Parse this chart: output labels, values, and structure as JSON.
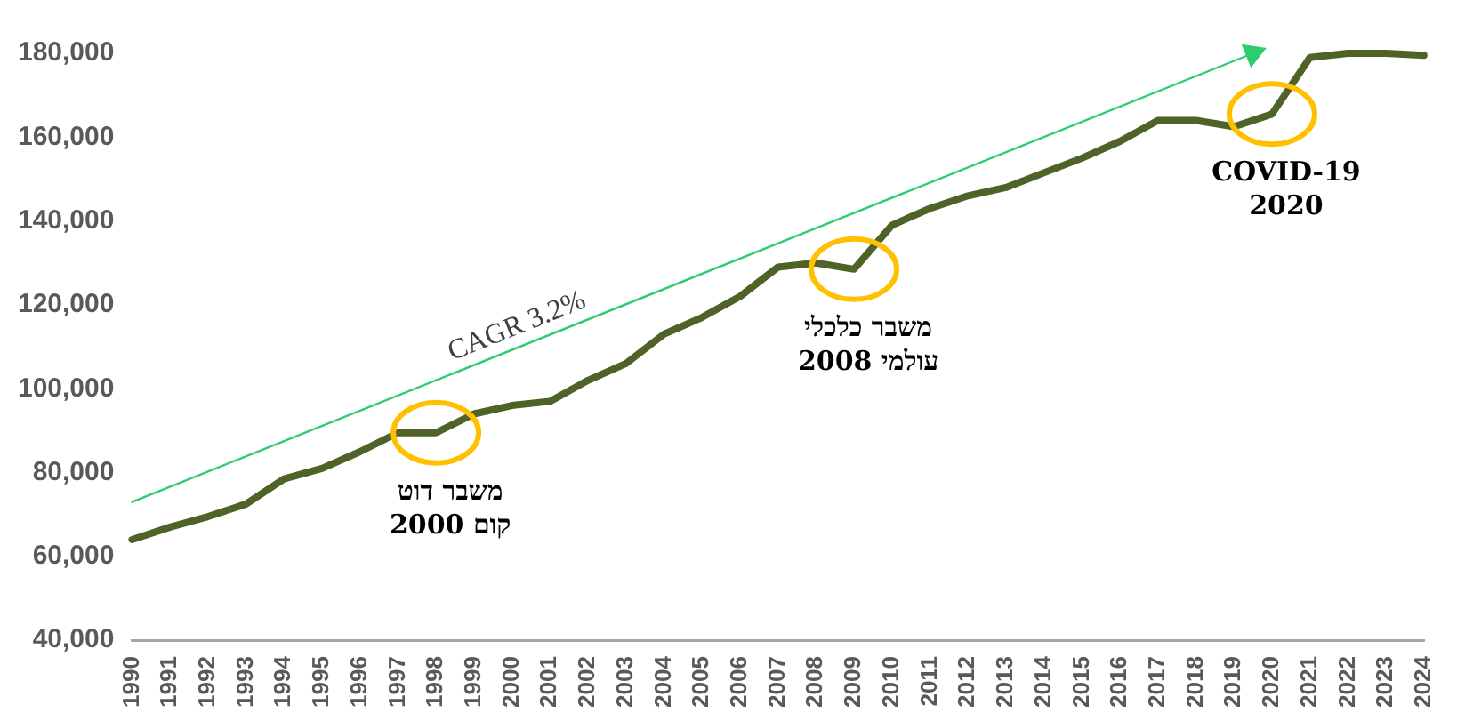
{
  "chart_data": {
    "type": "line",
    "x": [
      1990,
      1991,
      1992,
      1993,
      1994,
      1995,
      1996,
      1997,
      1998,
      1999,
      2000,
      2001,
      2002,
      2003,
      2004,
      2005,
      2006,
      2007,
      2008,
      2009,
      2010,
      2011,
      2012,
      2013,
      2014,
      2015,
      2016,
      2017,
      2018,
      2019,
      2020,
      2021,
      2022,
      2023,
      2024
    ],
    "series": [
      {
        "color": "#4f6228",
        "values": [
          64000,
          67000,
          69500,
          72500,
          78500,
          81000,
          85000,
          89500,
          89500,
          94000,
          96000,
          97000,
          102000,
          106000,
          113000,
          117000,
          122000,
          129000,
          130000,
          128500,
          139000,
          143000,
          146000,
          148000,
          151500,
          155000,
          159000,
          164000,
          164000,
          162500,
          165500,
          179000,
          180000,
          180000,
          179500
        ]
      },
      {
        "type": "line",
        "name": "CAGR 3.2%",
        "color": "#2ecc71",
        "marker": "triangle",
        "x": [
          1990,
          2019.5
        ],
        "values": [
          73000,
          180000
        ]
      }
    ],
    "xlim": [
      1990,
      2024
    ],
    "xticks": [
      1990,
      1991,
      1992,
      1993,
      1994,
      1995,
      1996,
      1997,
      1998,
      1999,
      2000,
      2001,
      2002,
      2003,
      2004,
      2005,
      2006,
      2007,
      2008,
      2009,
      2010,
      2011,
      2012,
      2013,
      2014,
      2015,
      2016,
      2017,
      2018,
      2019,
      2020,
      2021,
      2022,
      2023,
      2024
    ],
    "ylim": [
      40000,
      180000
    ],
    "yticks": [
      {
        "value": 40000,
        "label": "40,000"
      },
      {
        "value": 60000,
        "label": "60,000"
      },
      {
        "value": 80000,
        "label": "80,000"
      },
      {
        "value": 100000,
        "label": "100,000"
      },
      {
        "value": 120000,
        "label": "120,000"
      },
      {
        "value": 140000,
        "label": "140,000"
      },
      {
        "value": 160000,
        "label": "160,000"
      },
      {
        "value": 180000,
        "label": "180,000"
      }
    ],
    "grid": false,
    "legend": false,
    "marker": "none",
    "line_style": "solid",
    "annotations": [
      {
        "text": "משבר דוט\nקום 2000",
        "x": 1998,
        "y": 89500
      },
      {
        "text": "משבר כלכלי\nעולמי 2008",
        "x": 2009,
        "y": 128500
      },
      {
        "text": "COVID-19\n2020",
        "x": 2020,
        "y": 165500
      }
    ]
  }
}
